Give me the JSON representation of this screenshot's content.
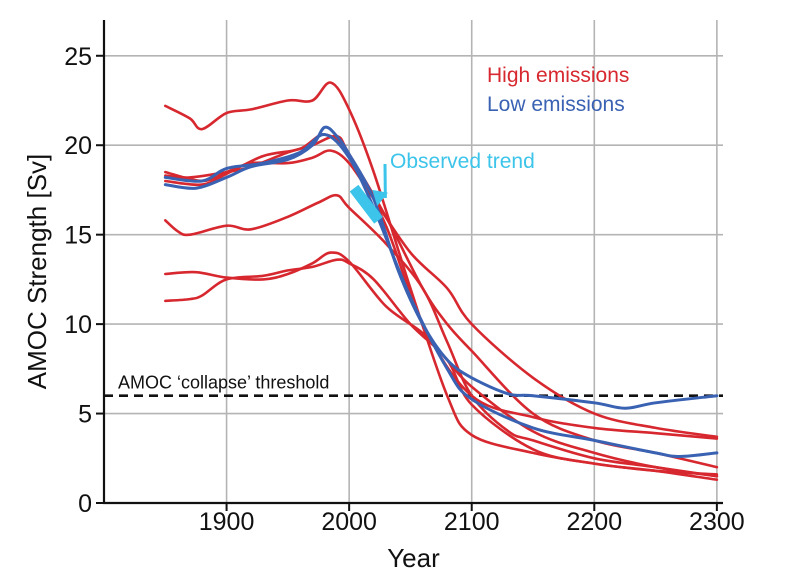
{
  "chart_data": {
    "type": "line",
    "title": "",
    "xlabel": "Year",
    "ylabel": "AMOC Strength [Sv]",
    "xlim": [
      1800,
      2305
    ],
    "ylim": [
      0,
      27
    ],
    "xticks": [
      1900,
      2000,
      2100,
      2200,
      2300
    ],
    "yticks": [
      0,
      5,
      10,
      15,
      20,
      25
    ],
    "grid": true,
    "legend": {
      "position": "top-right",
      "entries": [
        {
          "label": "High emissions",
          "color": "#d7282f"
        },
        {
          "label": "Low emissions",
          "color": "#3a62b3"
        }
      ]
    },
    "threshold": {
      "value": 6,
      "label": "AMOC ‘collapse’ threshold",
      "style": "dashed",
      "color": "#111111"
    },
    "observed_trend": {
      "label": "Observed trend",
      "color": "#3cc4ea",
      "x": [
        2004,
        2024
      ],
      "y": [
        17.6,
        15.8
      ]
    },
    "series": [
      {
        "name": "High emissions",
        "group": "high",
        "color": "#d7282f",
        "x": [
          1850,
          1870,
          1880,
          1900,
          1920,
          1950,
          1970,
          1985,
          2000,
          2020,
          2050,
          2080,
          2100,
          2150,
          2200,
          2250,
          2300
        ],
        "y": [
          22.2,
          21.5,
          20.9,
          21.8,
          22.0,
          22.5,
          22.5,
          23.5,
          22.0,
          18.5,
          12.0,
          6.0,
          3.8,
          2.8,
          2.2,
          1.8,
          1.6
        ]
      },
      {
        "name": "High emissions",
        "group": "high",
        "color": "#d7282f",
        "x": [
          1850,
          1880,
          1900,
          1920,
          1950,
          1970,
          1985,
          2000,
          2020,
          2050,
          2080,
          2100,
          2150,
          2200,
          2250,
          2300
        ],
        "y": [
          18.5,
          18.0,
          18.5,
          19.0,
          19.0,
          19.3,
          19.7,
          19.0,
          17.0,
          14.0,
          12.0,
          10.0,
          7.0,
          5.0,
          4.2,
          3.7
        ]
      },
      {
        "name": "High emissions",
        "group": "high",
        "color": "#d7282f",
        "x": [
          1850,
          1870,
          1900,
          1920,
          1950,
          1970,
          1990,
          2000,
          2030,
          2060,
          2080,
          2100,
          2150,
          2200,
          2250,
          2300
        ],
        "y": [
          18.3,
          18.2,
          18.5,
          18.8,
          19.6,
          20.0,
          20.5,
          19.5,
          16.0,
          12.0,
          10.0,
          8.5,
          5.0,
          3.5,
          2.8,
          2.0
        ]
      },
      {
        "name": "High emissions",
        "group": "high",
        "color": "#d7282f",
        "x": [
          1850,
          1860,
          1870,
          1900,
          1920,
          1950,
          1975,
          1990,
          2000,
          2030,
          2060,
          2080,
          2100,
          2130,
          2150,
          2200,
          2250,
          2300
        ],
        "y": [
          15.8,
          15.2,
          15.0,
          15.5,
          15.3,
          16.0,
          16.8,
          17.2,
          16.5,
          14.5,
          12.0,
          9.0,
          6.0,
          4.0,
          3.5,
          2.5,
          2.0,
          1.5
        ]
      },
      {
        "name": "High emissions",
        "group": "high",
        "color": "#d7282f",
        "x": [
          1850,
          1875,
          1900,
          1930,
          1950,
          1970,
          1985,
          2000,
          2030,
          2060,
          2080,
          2100,
          2150,
          2200,
          2250,
          2300
        ],
        "y": [
          12.8,
          12.9,
          12.6,
          12.5,
          12.8,
          13.4,
          14.0,
          13.5,
          11.0,
          9.5,
          8.0,
          6.5,
          4.0,
          2.8,
          2.0,
          1.5
        ]
      },
      {
        "name": "High emissions",
        "group": "high",
        "color": "#d7282f",
        "x": [
          1850,
          1870,
          1880,
          1900,
          1930,
          1950,
          1970,
          1990,
          2000,
          2020,
          2050,
          2080,
          2100,
          2150,
          2200,
          2250,
          2300
        ],
        "y": [
          11.3,
          11.4,
          11.6,
          12.5,
          12.7,
          13.0,
          13.2,
          13.6,
          13.4,
          12.5,
          10.0,
          8.0,
          5.5,
          3.0,
          2.2,
          1.8,
          1.3
        ]
      },
      {
        "name": "High emissions",
        "group": "high",
        "color": "#d7282f",
        "x": [
          1850,
          1880,
          1900,
          1930,
          1960,
          1980,
          2000,
          2030,
          2060,
          2100,
          2150,
          2200,
          2250,
          2300
        ],
        "y": [
          18.0,
          17.8,
          18.4,
          19.4,
          19.8,
          20.6,
          19.5,
          15.5,
          10.0,
          6.0,
          4.8,
          4.2,
          3.9,
          3.6
        ]
      },
      {
        "name": "Low emissions",
        "group": "low",
        "color": "#3a62b3",
        "x": [
          1850,
          1875,
          1900,
          1920,
          1950,
          1970,
          1980,
          1990,
          2000,
          2020,
          2040,
          2060,
          2080,
          2100,
          2130,
          2150,
          2200,
          2225,
          2250,
          2300
        ],
        "y": [
          17.8,
          17.6,
          18.2,
          18.8,
          19.2,
          20.0,
          21.0,
          20.5,
          19.5,
          17.0,
          13.0,
          10.0,
          8.0,
          7.0,
          6.1,
          6.0,
          5.6,
          5.3,
          5.6,
          6.0
        ]
      },
      {
        "name": "Low emissions",
        "group": "low",
        "color": "#3a62b3",
        "x": [
          1850,
          1880,
          1900,
          1930,
          1960,
          1980,
          2000,
          2020,
          2050,
          2080,
          2100,
          2150,
          2200,
          2250,
          2270,
          2300
        ],
        "y": [
          18.2,
          18.0,
          18.7,
          19.0,
          19.6,
          20.6,
          19.3,
          16.5,
          11.5,
          7.5,
          5.8,
          4.2,
          3.5,
          2.8,
          2.6,
          2.8
        ]
      }
    ]
  }
}
